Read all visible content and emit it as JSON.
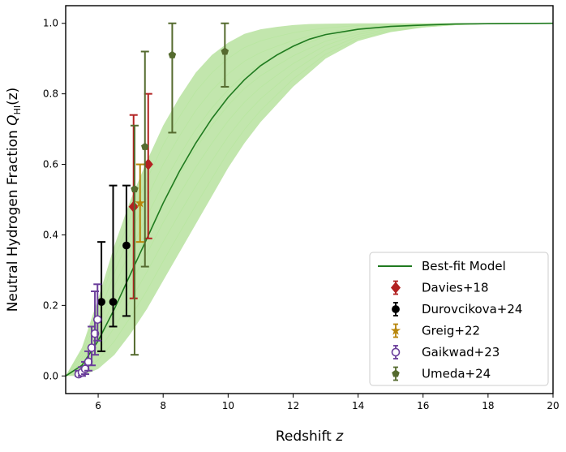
{
  "chart_data": {
    "type": "scatter",
    "xlabel_main": "Redshift ",
    "xlabel_var": "z",
    "ylabel_main": "Neutral Hydrogen Fraction ",
    "ylabel_var": "Q",
    "ylabel_sub": "HI",
    "ylabel_arg": "(z)",
    "xlim": [
      5.0,
      20.0
    ],
    "ylim": [
      -0.05,
      1.05
    ],
    "xticks": [
      6,
      8,
      10,
      12,
      14,
      16,
      18,
      20
    ],
    "yticks": [
      0.0,
      0.2,
      0.4,
      0.6,
      0.8,
      1.0
    ],
    "xtick_labels": [
      "6",
      "8",
      "10",
      "12",
      "14",
      "16",
      "18",
      "20"
    ],
    "ytick_labels": [
      "0.0",
      "0.2",
      "0.4",
      "0.6",
      "0.8",
      "1.0"
    ],
    "legend_position": "lower-right",
    "best_fit": {
      "name": "Best-fit Model",
      "color": "#1f7a1f",
      "band_color": "#8fd16a",
      "z": [
        5.0,
        5.5,
        6.0,
        6.5,
        7.0,
        7.5,
        8.0,
        8.5,
        9.0,
        9.5,
        10.0,
        10.5,
        11.0,
        11.5,
        12.0,
        12.5,
        13.0,
        14.0,
        15.0,
        16.0,
        17.0,
        18.0,
        19.0,
        20.0
      ],
      "q": [
        0.0,
        0.03,
        0.1,
        0.19,
        0.29,
        0.39,
        0.49,
        0.58,
        0.66,
        0.73,
        0.79,
        0.84,
        0.88,
        0.91,
        0.935,
        0.955,
        0.968,
        0.983,
        0.991,
        0.995,
        0.998,
        0.999,
        0.9995,
        1.0
      ],
      "q_lower": [
        0.0,
        0.0,
        0.02,
        0.06,
        0.12,
        0.19,
        0.27,
        0.35,
        0.43,
        0.51,
        0.59,
        0.66,
        0.72,
        0.77,
        0.82,
        0.86,
        0.9,
        0.95,
        0.975,
        0.988,
        0.995,
        0.998,
        0.999,
        1.0
      ],
      "q_upper": [
        0.0,
        0.08,
        0.22,
        0.37,
        0.5,
        0.61,
        0.71,
        0.79,
        0.86,
        0.91,
        0.945,
        0.97,
        0.983,
        0.99,
        0.995,
        0.998,
        0.999,
        1.0,
        1.0,
        1.0,
        1.0,
        1.0,
        1.0,
        1.0
      ]
    },
    "series": [
      {
        "name": "Davies+18",
        "color": "#b22222",
        "marker": "diamond",
        "filled": true,
        "points": [
          {
            "x": 7.09,
            "y": 0.48,
            "ylo": 0.22,
            "yhi": 0.74
          },
          {
            "x": 7.54,
            "y": 0.6,
            "ylo": 0.39,
            "yhi": 0.8
          }
        ]
      },
      {
        "name": "Durovcikova+24",
        "color": "#000000",
        "marker": "circle",
        "filled": true,
        "points": [
          {
            "x": 6.1,
            "y": 0.21,
            "ylo": 0.07,
            "yhi": 0.38
          },
          {
            "x": 6.46,
            "y": 0.21,
            "ylo": 0.14,
            "yhi": 0.54
          },
          {
            "x": 6.87,
            "y": 0.37,
            "ylo": 0.17,
            "yhi": 0.54
          }
        ]
      },
      {
        "name": "Greig+22",
        "color": "#b8860b",
        "marker": "star",
        "filled": true,
        "points": [
          {
            "x": 7.29,
            "y": 0.49,
            "ylo": 0.38,
            "yhi": 0.6
          }
        ]
      },
      {
        "name": "Gaikwad+23",
        "color": "#6a3d9a",
        "marker": "circle",
        "filled": false,
        "points": [
          {
            "x": 5.4,
            "y": 0.005,
            "ylo": 0.0,
            "yhi": 0.015
          },
          {
            "x": 5.5,
            "y": 0.01,
            "ylo": 0.0,
            "yhi": 0.025
          },
          {
            "x": 5.6,
            "y": 0.02,
            "ylo": 0.005,
            "yhi": 0.04
          },
          {
            "x": 5.7,
            "y": 0.04,
            "ylo": 0.015,
            "yhi": 0.07
          },
          {
            "x": 5.8,
            "y": 0.08,
            "ylo": 0.03,
            "yhi": 0.14
          },
          {
            "x": 5.9,
            "y": 0.12,
            "ylo": 0.06,
            "yhi": 0.24
          },
          {
            "x": 5.98,
            "y": 0.16,
            "ylo": 0.1,
            "yhi": 0.26
          }
        ]
      },
      {
        "name": "Umeda+24",
        "color": "#556b2f",
        "marker": "pentagon",
        "filled": true,
        "points": [
          {
            "x": 7.12,
            "y": 0.53,
            "ylo": 0.06,
            "yhi": 0.71
          },
          {
            "x": 7.44,
            "y": 0.65,
            "ylo": 0.31,
            "yhi": 0.92
          },
          {
            "x": 8.28,
            "y": 0.91,
            "ylo": 0.69,
            "yhi": 1.0
          },
          {
            "x": 9.9,
            "y": 0.92,
            "ylo": 0.82,
            "yhi": 1.0
          }
        ]
      }
    ]
  }
}
